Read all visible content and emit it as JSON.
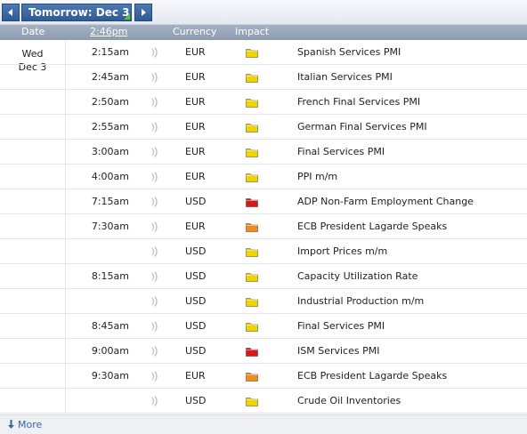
{
  "nav": {
    "date_label": "Tomorrow: Dec 3"
  },
  "columns": {
    "date": "Date",
    "time": "2:46pm",
    "currency": "Currency",
    "impact": "Impact"
  },
  "day": {
    "weekday": "Wed",
    "date": "Dec 3"
  },
  "impact_colors": {
    "low": "#f0d400",
    "medium": "#f08a1c",
    "high": "#d61a1a"
  },
  "events": [
    {
      "time": "2:15am",
      "currency": "EUR",
      "impact": "low",
      "title": "Spanish Services PMI"
    },
    {
      "time": "2:45am",
      "currency": "EUR",
      "impact": "low",
      "title": "Italian Services PMI"
    },
    {
      "time": "2:50am",
      "currency": "EUR",
      "impact": "low",
      "title": "French Final Services PMI"
    },
    {
      "time": "2:55am",
      "currency": "EUR",
      "impact": "low",
      "title": "German Final Services PMI"
    },
    {
      "time": "3:00am",
      "currency": "EUR",
      "impact": "low",
      "title": "Final Services PMI"
    },
    {
      "time": "4:00am",
      "currency": "EUR",
      "impact": "low",
      "title": "PPI m/m"
    },
    {
      "time": "7:15am",
      "currency": "USD",
      "impact": "high",
      "title": "ADP Non-Farm Employment Change"
    },
    {
      "time": "7:30am",
      "currency": "EUR",
      "impact": "medium",
      "title": "ECB President Lagarde Speaks"
    },
    {
      "time": "",
      "currency": "USD",
      "impact": "low",
      "title": "Import Prices m/m"
    },
    {
      "time": "8:15am",
      "currency": "USD",
      "impact": "low",
      "title": "Capacity Utilization Rate"
    },
    {
      "time": "",
      "currency": "USD",
      "impact": "low",
      "title": "Industrial Production m/m"
    },
    {
      "time": "8:45am",
      "currency": "USD",
      "impact": "low",
      "title": "Final Services PMI"
    },
    {
      "time": "9:00am",
      "currency": "USD",
      "impact": "high",
      "title": "ISM Services PMI"
    },
    {
      "time": "9:30am",
      "currency": "EUR",
      "impact": "medium",
      "title": "ECB President Lagarde Speaks"
    },
    {
      "time": "",
      "currency": "USD",
      "impact": "low",
      "title": "Crude Oil Inventories"
    }
  ],
  "footer": {
    "more_label": "More"
  }
}
